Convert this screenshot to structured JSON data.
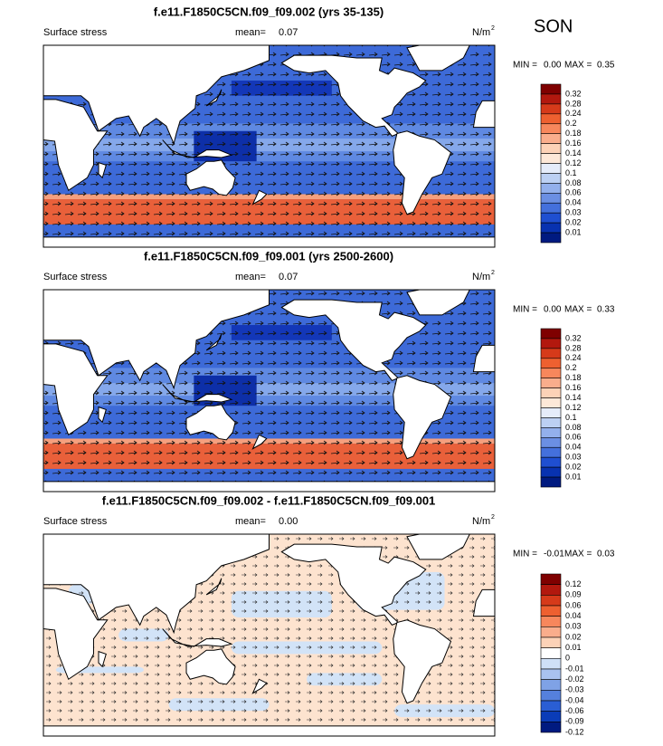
{
  "season": "SON",
  "panels": [
    {
      "title": "f.e11.F1850C5CN.f09_f09.002 (yrs 35-135)",
      "field": "Surface stress",
      "mean_label": "mean=",
      "mean": "0.07",
      "units": "N/m",
      "units_exp": "2",
      "min_label": "MIN =",
      "min": "0.00",
      "max_label": "MAX =",
      "max": "0.35",
      "colorbar": [
        "0.32",
        "0.28",
        "0.24",
        "0.2",
        "0.18",
        "0.16",
        "0.14",
        "0.12",
        "0.1",
        "0.08",
        "0.06",
        "0.04",
        "0.03",
        "0.02",
        "0.01"
      ]
    },
    {
      "title": "f.e11.F1850C5CN.f09_f09.001 (yrs 2500-2600)",
      "field": "Surface stress",
      "mean_label": "mean=",
      "mean": "0.07",
      "units": "N/m",
      "units_exp": "2",
      "min_label": "MIN =",
      "min": "0.00",
      "max_label": "MAX =",
      "max": "0.33",
      "colorbar": [
        "0.32",
        "0.28",
        "0.24",
        "0.2",
        "0.18",
        "0.16",
        "0.14",
        "0.12",
        "0.1",
        "0.08",
        "0.06",
        "0.04",
        "0.03",
        "0.02",
        "0.01"
      ]
    },
    {
      "title": "f.e11.F1850C5CN.f09_f09.002 - f.e11.F1850C5CN.f09_f09.001",
      "field": "Surface stress",
      "mean_label": "mean=",
      "mean": "0.00",
      "units": "N/m",
      "units_exp": "2",
      "min_label": "MIN =",
      "min": "-0.01",
      "max_label": "MAX =",
      "max": "0.03",
      "colorbar": [
        "0.12",
        "0.09",
        "0.06",
        "0.04",
        "0.03",
        "0.02",
        "0.01",
        "0",
        "-0.01",
        "-0.02",
        "-0.03",
        "-0.04",
        "-0.06",
        "-0.09",
        "-0.12"
      ]
    }
  ]
}
